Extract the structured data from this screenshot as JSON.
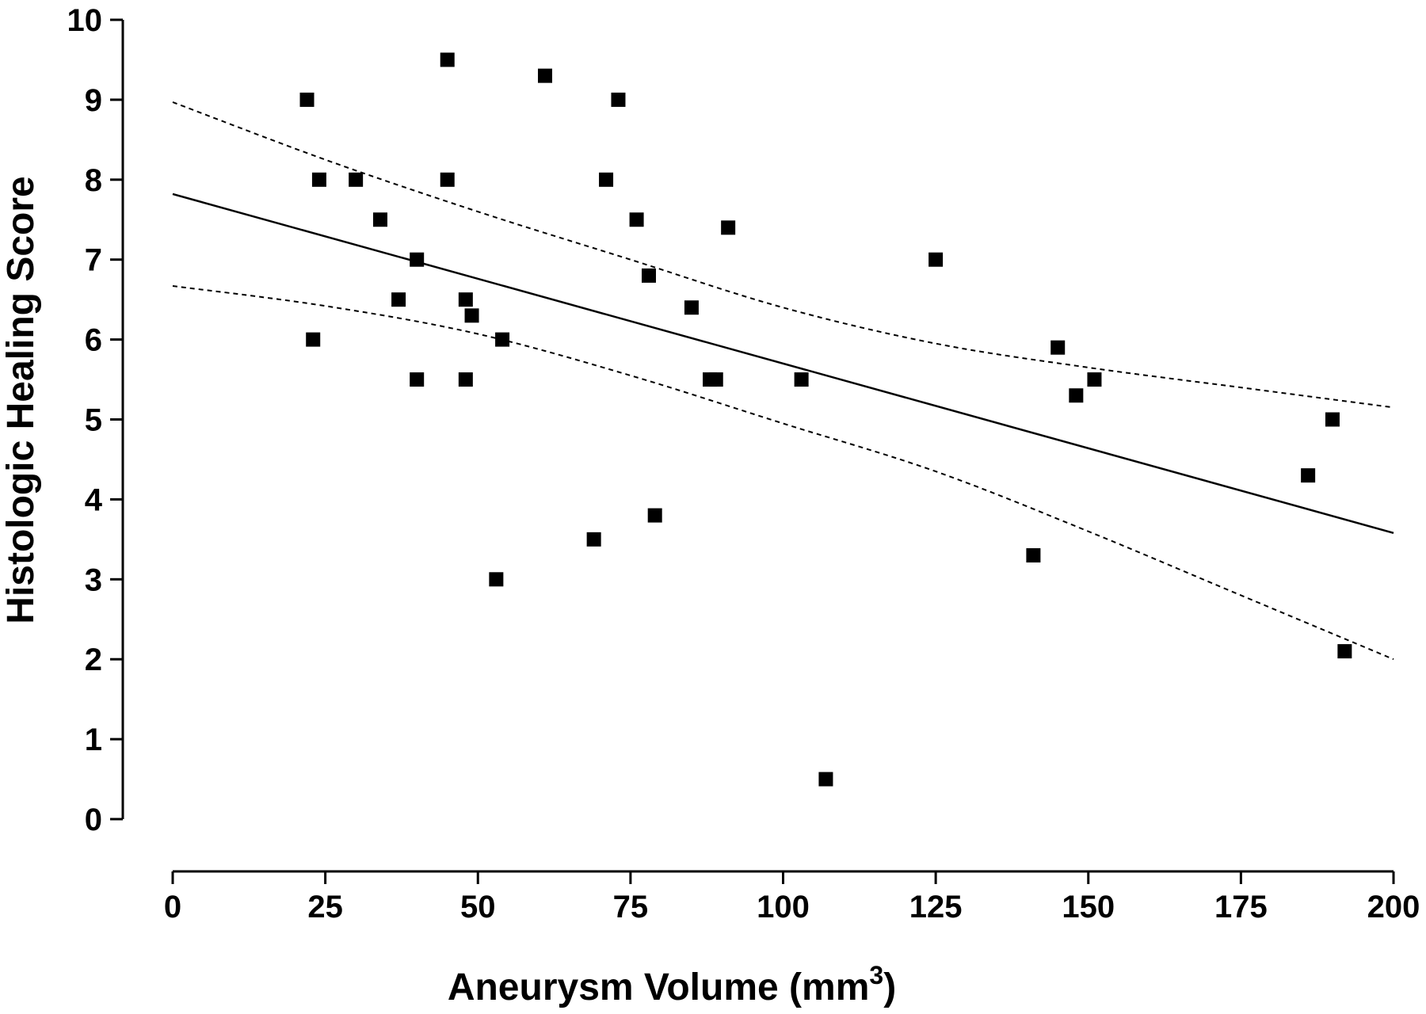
{
  "chart_data": {
    "type": "scatter",
    "title": "",
    "xlabel": "Aneurysm Volume (mm",
    "xlabel_superscript": "3",
    "xlabel_suffix": ")",
    "ylabel": "Histologic Healing Score",
    "xlim": [
      0,
      200
    ],
    "ylim": [
      0,
      10
    ],
    "x_ticks": [
      0,
      25,
      50,
      75,
      100,
      125,
      150,
      175,
      200
    ],
    "y_ticks": [
      0,
      1,
      2,
      3,
      4,
      5,
      6,
      7,
      8,
      9,
      10
    ],
    "grid": false,
    "legend": "none",
    "marker": "square",
    "color": "#000000",
    "points": [
      {
        "x": 22,
        "y": 9.0
      },
      {
        "x": 23,
        "y": 6.0
      },
      {
        "x": 24,
        "y": 8.0
      },
      {
        "x": 30,
        "y": 8.0
      },
      {
        "x": 34,
        "y": 7.5
      },
      {
        "x": 37,
        "y": 6.5
      },
      {
        "x": 40,
        "y": 7.0
      },
      {
        "x": 40,
        "y": 5.5
      },
      {
        "x": 45,
        "y": 9.5
      },
      {
        "x": 45,
        "y": 8.0
      },
      {
        "x": 48,
        "y": 6.5
      },
      {
        "x": 48,
        "y": 5.5
      },
      {
        "x": 49,
        "y": 6.3
      },
      {
        "x": 53,
        "y": 3.0
      },
      {
        "x": 54,
        "y": 6.0
      },
      {
        "x": 61,
        "y": 9.3
      },
      {
        "x": 69,
        "y": 3.5
      },
      {
        "x": 71,
        "y": 8.0
      },
      {
        "x": 73,
        "y": 9.0
      },
      {
        "x": 76,
        "y": 7.5
      },
      {
        "x": 78,
        "y": 6.8
      },
      {
        "x": 79,
        "y": 3.8
      },
      {
        "x": 85,
        "y": 6.4
      },
      {
        "x": 88,
        "y": 5.5
      },
      {
        "x": 89,
        "y": 5.5
      },
      {
        "x": 91,
        "y": 7.4
      },
      {
        "x": 103,
        "y": 5.5
      },
      {
        "x": 107,
        "y": 0.5
      },
      {
        "x": 125,
        "y": 7.0
      },
      {
        "x": 141,
        "y": 3.3
      },
      {
        "x": 145,
        "y": 5.9
      },
      {
        "x": 148,
        "y": 5.3
      },
      {
        "x": 151,
        "y": 5.5
      },
      {
        "x": 186,
        "y": 4.3
      },
      {
        "x": 190,
        "y": 5.0
      },
      {
        "x": 192,
        "y": 2.1
      }
    ],
    "regression_line": {
      "x": [
        0,
        200
      ],
      "y": [
        7.82,
        3.58
      ]
    },
    "confidence_band_upper": {
      "x": [
        0,
        25,
        50,
        75,
        100,
        125,
        150,
        175,
        200
      ],
      "y": [
        8.97,
        8.25,
        7.6,
        7.0,
        6.4,
        5.95,
        5.65,
        5.4,
        5.15
      ]
    },
    "confidence_band_lower": {
      "x": [
        0,
        25,
        50,
        75,
        100,
        125,
        150,
        175,
        200
      ],
      "y": [
        6.67,
        6.42,
        6.07,
        5.55,
        4.95,
        4.35,
        3.6,
        2.8,
        2.0
      ]
    }
  }
}
